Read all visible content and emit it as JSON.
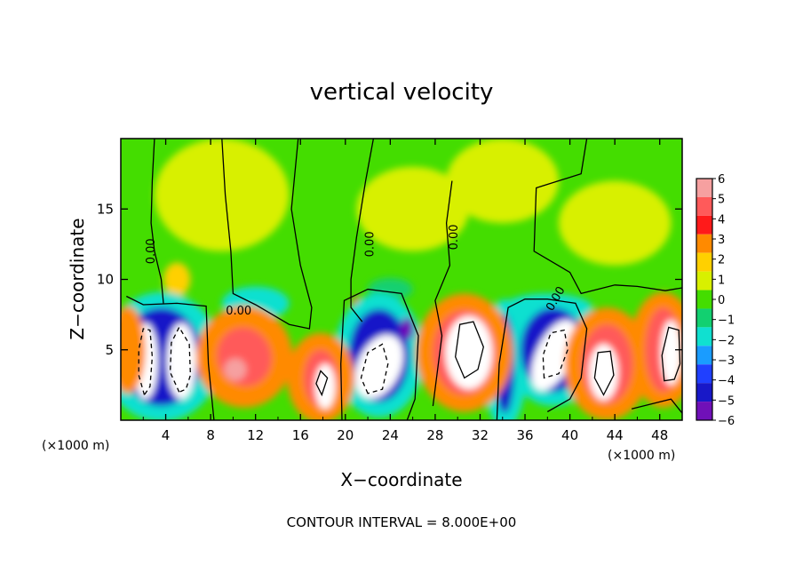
{
  "chart_data": {
    "type": "heatmap",
    "title": "vertical velocity",
    "xlabel": "X−coordinate",
    "ylabel": "Z−coordinate",
    "x_unit": "(×1000 m)",
    "y_unit": "(×1000 m)",
    "xlim": [
      0,
      50
    ],
    "ylim": [
      0,
      20
    ],
    "x_ticks": [
      "4",
      "8",
      "12",
      "16",
      "20",
      "24",
      "28",
      "32",
      "36",
      "40",
      "44",
      "48"
    ],
    "y_ticks": [
      "5",
      "10",
      "15"
    ],
    "colorbar": {
      "range": [
        -6,
        6
      ],
      "labels": [
        "6",
        "5",
        "4",
        "3",
        "2",
        "1",
        "0",
        "−1",
        "−2",
        "−3",
        "−4",
        "−5",
        "−6"
      ],
      "colors": [
        "#f6a0a0",
        "#ff5a5a",
        "#ff1a1a",
        "#ff8a00",
        "#ffd000",
        "#d8f000",
        "#44dd00",
        "#12d070",
        "#10e0d0",
        "#1a9cff",
        "#2040ff",
        "#1818c8",
        "#7010b8"
      ]
    },
    "contour_label": "0.00",
    "contour_interval": "CONTOUR INTERVAL = 8.000E+00",
    "features": [
      {
        "x": 2.2,
        "z": 4.2,
        "sign": "negative"
      },
      {
        "x": 5.5,
        "z": 4.2,
        "sign": "negative"
      },
      {
        "x": 11.0,
        "z": 4.5,
        "sign": "positive"
      },
      {
        "x": 18.0,
        "z": 2.5,
        "sign": "positive"
      },
      {
        "x": 23.0,
        "z": 4.0,
        "sign": "negative"
      },
      {
        "x": 31.0,
        "z": 5.2,
        "sign": "positive"
      },
      {
        "x": 38.5,
        "z": 4.6,
        "sign": "negative"
      },
      {
        "x": 43.0,
        "z": 3.5,
        "sign": "positive"
      },
      {
        "x": 48.5,
        "z": 5.0,
        "sign": "positive"
      }
    ]
  }
}
